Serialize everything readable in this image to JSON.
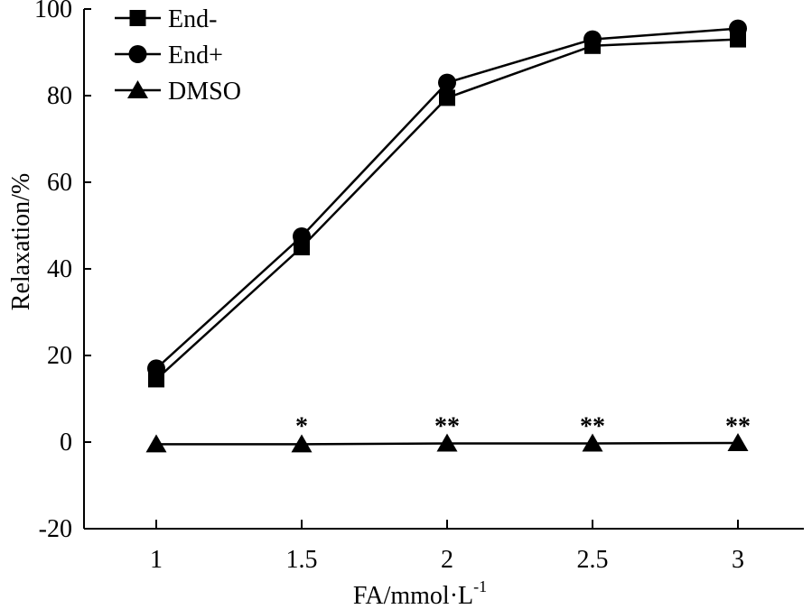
{
  "chart_data": {
    "type": "line",
    "title": "",
    "xlabel_main": "FA/mmol·L",
    "xlabel_sup": "-1",
    "ylabel": "Relaxation/%",
    "x": [
      1,
      1.5,
      2,
      2.5,
      3
    ],
    "x_tick_labels": [
      "1",
      "1.5",
      "2",
      "2.5",
      "3"
    ],
    "y_ticks": [
      -20,
      0,
      20,
      40,
      60,
      80,
      100
    ],
    "y_tick_labels": [
      "-20",
      "0",
      "20",
      "40",
      "60",
      "80",
      "100"
    ],
    "xlim": [
      0.75,
      3.25
    ],
    "ylim": [
      -20,
      100
    ],
    "grid": false,
    "legend_position": "top-left",
    "series": [
      {
        "name": "End-",
        "marker": "square",
        "values": [
          14.5,
          45,
          79.5,
          91.5,
          93
        ]
      },
      {
        "name": "End+",
        "marker": "circle",
        "values": [
          17,
          47.5,
          83,
          93,
          95.5
        ]
      },
      {
        "name": "DMSO",
        "marker": "triangle",
        "values": [
          -0.5,
          -0.5,
          -0.3,
          -0.3,
          -0.2
        ]
      }
    ],
    "annotations": [
      {
        "x": 1.5,
        "y": 5.5,
        "text": "*"
      },
      {
        "x": 2,
        "y": 5.5,
        "text": "**"
      },
      {
        "x": 2.5,
        "y": 5.5,
        "text": "**"
      },
      {
        "x": 3,
        "y": 5.5,
        "text": "**"
      }
    ]
  },
  "colors": {
    "line": "#000000",
    "marker_fill": "#000000",
    "background": "#ffffff"
  }
}
